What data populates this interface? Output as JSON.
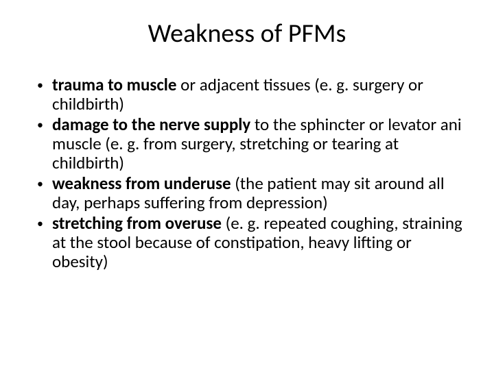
{
  "title": "Weakness of PFMs",
  "bullets": [
    {
      "bold": "trauma to muscle",
      "rest": " or adjacent tissues (e. g. surgery or childbirth)"
    },
    {
      "bold": "damage to the nerve supply",
      "rest": " to the sphincter or levator ani muscle (e. g. from surgery, stretching or tearing at childbirth)"
    },
    {
      "bold": "weakness from underuse",
      "rest": " (the patient may sit around all day, perhaps suffering from depression)"
    },
    {
      "bold": "stretching from overuse",
      "rest": " (e. g. repeated coughing, straining at the stool because of constipation, heavy lifting or obesity)"
    }
  ],
  "bullet_char": "•"
}
